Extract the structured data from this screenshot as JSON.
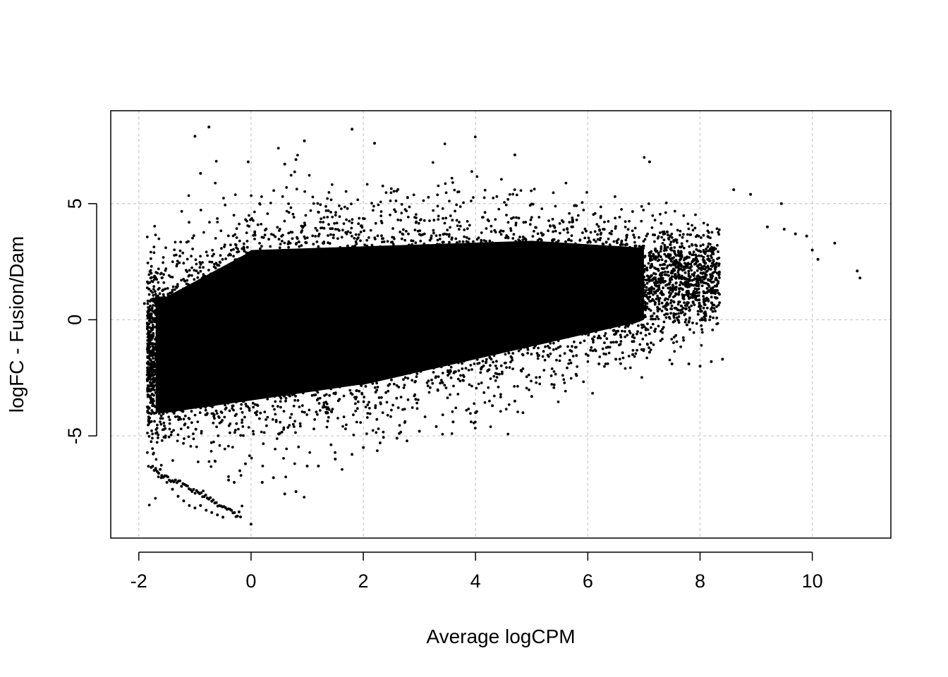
{
  "chart_data": {
    "type": "scatter",
    "title": "",
    "xlabel": "Average logCPM",
    "ylabel": "logFC - Fusion/Dam",
    "xlim": [
      -2.5,
      11.4
    ],
    "ylim": [
      -9.4,
      9.0
    ],
    "x_ticks": [
      -2,
      0,
      2,
      4,
      6,
      8,
      10
    ],
    "x_tick_labels": [
      "-2",
      "0",
      "2",
      "4",
      "6",
      "8",
      "10"
    ],
    "y_ticks": [
      -5,
      0,
      5
    ],
    "y_tick_labels": [
      "-5",
      "0",
      "5"
    ],
    "grid": true,
    "point_color": "#000000",
    "series": [
      {
        "note": "dense cloud of points; representative visible points listed, bulk density generated from these envelope bounds",
        "x": [
          -1.9,
          -1.8,
          -1.75,
          -1.7,
          -1.65,
          -1.6,
          -1.5,
          -1.4,
          -1.3,
          -1.2,
          -1.1,
          -1.0,
          -0.9,
          -0.8,
          -0.7,
          -0.6,
          -0.5,
          -0.4,
          -0.3,
          -0.2,
          -0.1,
          0.0,
          0.2,
          0.4,
          0.6,
          0.8,
          1.0,
          1.2,
          1.5,
          1.8,
          2.0,
          2.3,
          2.6,
          3.0,
          3.3,
          3.6,
          4.0,
          4.3,
          4.7,
          5.0,
          5.4,
          5.8,
          6.2,
          6.5,
          6.8,
          7.1,
          7.5,
          7.8,
          8.0,
          8.2,
          8.4,
          8.6,
          8.9,
          9.2,
          9.5,
          9.7,
          9.9,
          10.0,
          10.1,
          10.4,
          10.8,
          10.85,
          -1.0,
          -0.75,
          1.8,
          0.95,
          2.2,
          7.1,
          -0.9,
          0.6,
          0.8,
          -0.05,
          9.45,
          4.7
        ],
        "y": [
          0.7,
          0.8,
          -3.7,
          -6.4,
          -6.6,
          -6.8,
          -7.0,
          -7.3,
          -7.6,
          -7.8,
          -8.0,
          -8.1,
          -8.0,
          -8.2,
          -8.3,
          -8.4,
          -8.5,
          -6.9,
          -7.0,
          -6.5,
          -6.2,
          -8.8,
          -7.0,
          -6.8,
          -7.5,
          -7.4,
          -6.3,
          -6.3,
          -6.0,
          -5.8,
          -5.5,
          -5.3,
          -5.1,
          -4.8,
          -4.6,
          -4.4,
          -4.0,
          -3.7,
          -3.5,
          -3.3,
          -2.8,
          -2.4,
          -1.9,
          -1.7,
          -1.5,
          -1.4,
          -1.9,
          -1.9,
          -2.0,
          -1.8,
          -1.7,
          5.6,
          5.4,
          4.0,
          3.9,
          3.7,
          3.6,
          3.0,
          2.6,
          3.3,
          2.1,
          1.8,
          7.9,
          8.3,
          8.2,
          7.7,
          7.6,
          6.8,
          6.3,
          6.7,
          6.9,
          6.8,
          5.0,
          7.1
        ]
      }
    ]
  }
}
